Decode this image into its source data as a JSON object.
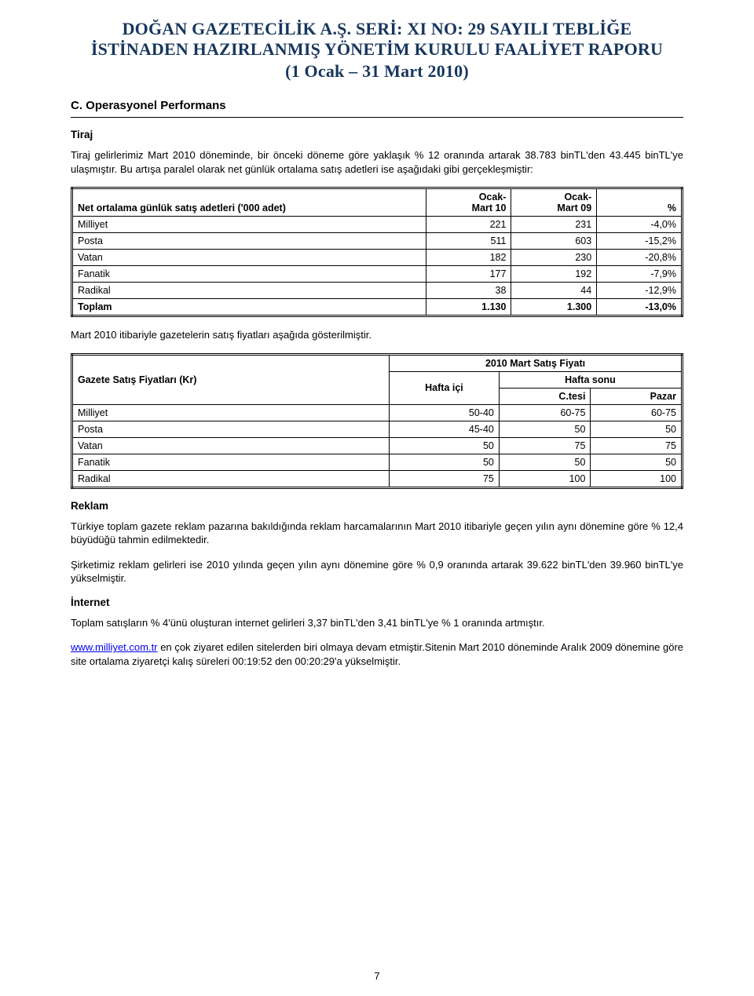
{
  "header": {
    "line1": "DOĞAN GAZETECİLİK A.Ş.  SERİ: XI NO: 29 SAYILI TEBLİĞE",
    "line2": "İSTİNADEN HAZIRLANMIŞ YÖNETİM KURULU FAALİYET RAPORU",
    "line3": "(1 Ocak – 31 Mart 2010)"
  },
  "section_c": {
    "title": "C. Operasyonel Performans",
    "tiraj_head": "Tiraj",
    "tiraj_p": "Tiraj gelirlerimiz Mart 2010 döneminde, bir önceki döneme göre yaklaşık % 12 oranında artarak 38.783 binTL'den 43.445 binTL'ye ulaşmıştır. Bu artışa paralel olarak net günlük ortalama satış adetleri ise aşağıdaki gibi gerçekleşmiştir:"
  },
  "table1": {
    "headers": {
      "c1": "Net ortalama günlük satış adetleri ('000 adet)",
      "c2": "Ocak-\nMart 10",
      "c3": "Ocak-\nMart 09",
      "c4": "%"
    },
    "rows": [
      {
        "label": "Milliyet",
        "v10": "221",
        "v09": "231",
        "pct": "-4,0%"
      },
      {
        "label": "Posta",
        "v10": "511",
        "v09": "603",
        "pct": "-15,2%"
      },
      {
        "label": "Vatan",
        "v10": "182",
        "v09": "230",
        "pct": "-20,8%"
      },
      {
        "label": "Fanatik",
        "v10": "177",
        "v09": "192",
        "pct": "-7,9%"
      },
      {
        "label": "Radikal",
        "v10": "38",
        "v09": "44",
        "pct": "-12,9%"
      }
    ],
    "total": {
      "label": "Toplam",
      "v10": "1.130",
      "v09": "1.300",
      "pct": "-13,0%"
    }
  },
  "mid_p": "Mart 2010 itibariyle gazetelerin satış fiyatları aşağıda gösterilmiştir.",
  "table2": {
    "title": {
      "c1": "Gazete Satış Fiyatları (Kr)",
      "span": "2010 Mart Satış Fiyatı"
    },
    "sub": {
      "hafta_ici": "Hafta içi",
      "hafta_sonu": "Hafta sonu"
    },
    "sub2": {
      "ctesi": "C.tesi",
      "pazar": "Pazar"
    },
    "rows": [
      {
        "label": "Milliyet",
        "hi": "50-40",
        "ct": "60-75",
        "pz": "60-75"
      },
      {
        "label": "Posta",
        "hi": "45-40",
        "ct": "50",
        "pz": "50"
      },
      {
        "label": "Vatan",
        "hi": "50",
        "ct": "75",
        "pz": "75"
      },
      {
        "label": "Fanatik",
        "hi": "50",
        "ct": "50",
        "pz": "50"
      },
      {
        "label": "Radikal",
        "hi": "75",
        "ct": "100",
        "pz": "100"
      }
    ]
  },
  "reklam": {
    "head": "Reklam",
    "p1": "Türkiye toplam gazete reklam pazarına bakıldığında reklam harcamalarının Mart 2010 itibariyle geçen yılın aynı dönemine göre % 12,4 büyüdüğü tahmin edilmektedir.",
    "p2": "Şirketimiz reklam gelirleri ise 2010 yılında geçen yılın aynı dönemine göre % 0,9 oranında artarak 39.622 binTL'den 39.960 binTL'ye yükselmiştir."
  },
  "internet": {
    "head": "İnternet",
    "p1": "Toplam satışların % 4'ünü oluşturan internet gelirleri 3,37 binTL'den 3,41 binTL'ye % 1 oranında artmıştır.",
    "link_text": "www.milliyet.com.tr",
    "p2_tail": " en çok ziyaret edilen sitelerden biri olmaya devam etmiştir.Sitenin Mart 2010 döneminde Aralık 2009 dönemine göre site ortalama ziyaretçi kalış süreleri 00:19:52 den 00:20:29'a yükselmiştir."
  },
  "page_number": "7"
}
